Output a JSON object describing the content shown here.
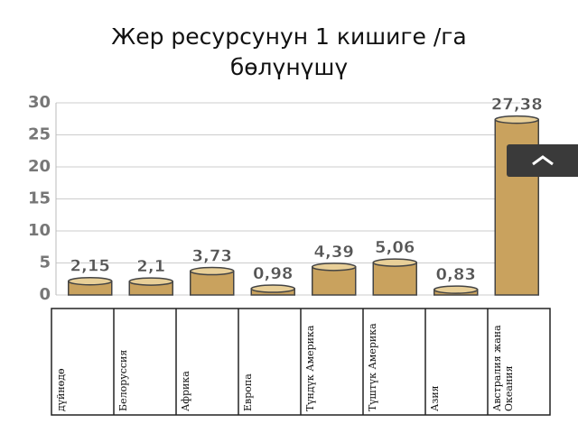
{
  "chart_data": {
    "type": "bar",
    "title": "Жер ресурсунун 1 кишиге /га бөлүнүшү",
    "categories": [
      "дүйнөдө",
      "Белоруссия",
      "Африка",
      "Европа",
      "Түндүк Америка",
      "Түштүк Америка",
      "Азия",
      "Австралия жана Океания"
    ],
    "values": [
      2.15,
      2.1,
      3.73,
      0.98,
      4.39,
      5.06,
      0.83,
      27.38
    ],
    "value_labels": [
      "2,15",
      "2,1",
      "3,73",
      "0,98",
      "4,39",
      "5,06",
      "0,83",
      "27,38"
    ],
    "color": "#c9a25e",
    "ylim": [
      0,
      30
    ],
    "yticks": [
      0,
      5,
      10,
      15,
      20,
      25,
      30
    ],
    "grid": true
  }
}
